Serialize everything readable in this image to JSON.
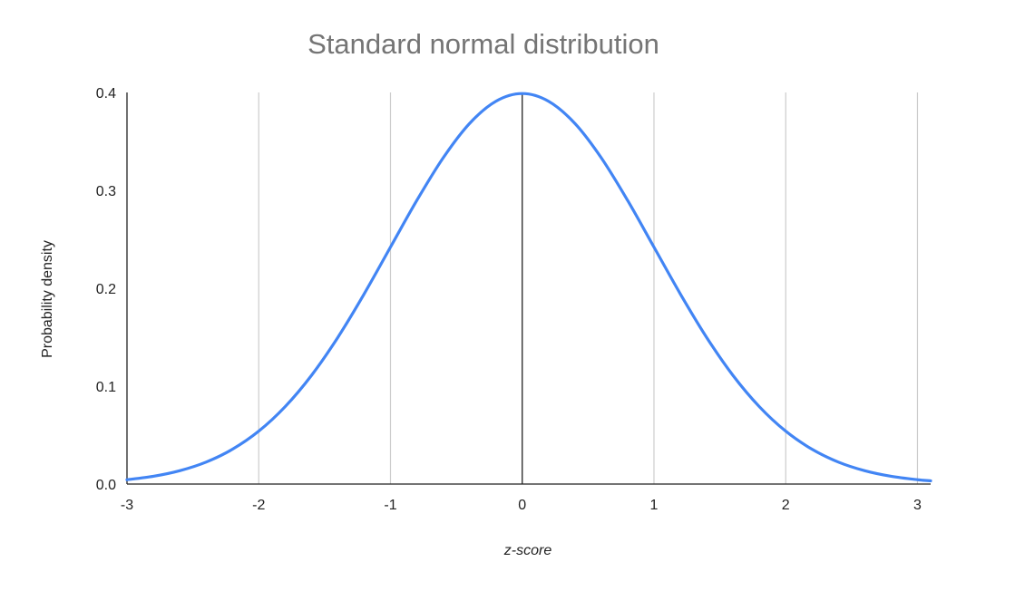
{
  "chart_data": {
    "type": "line",
    "title": "Standard normal distribution",
    "xlabel": "z-score",
    "ylabel": "Probability density",
    "xlim": [
      -3,
      3.1
    ],
    "ylim": [
      0,
      0.4
    ],
    "x_ticks": [
      "-3",
      "-2",
      "-1",
      "0",
      "1",
      "2",
      "3"
    ],
    "y_ticks": [
      "0.0",
      "0.1",
      "0.2",
      "0.3",
      "0.4"
    ],
    "grid": "vertical",
    "legend": "none",
    "series": [
      {
        "color": "#4285f4",
        "x": [
          -3.0,
          -2.8,
          -2.6,
          -2.4,
          -2.2,
          -2.0,
          -1.8,
          -1.6,
          -1.4,
          -1.2,
          -1.0,
          -0.8,
          -0.6,
          -0.4,
          -0.2,
          0.0,
          0.2,
          0.4,
          0.6,
          0.8,
          1.0,
          1.2,
          1.4,
          1.6,
          1.8,
          2.0,
          2.2,
          2.4,
          2.6,
          2.8,
          3.0,
          3.1
        ],
        "y": [
          0.0044,
          0.0079,
          0.0136,
          0.0224,
          0.0355,
          0.054,
          0.079,
          0.1109,
          0.1497,
          0.1942,
          0.242,
          0.2897,
          0.3332,
          0.3683,
          0.391,
          0.3989,
          0.391,
          0.3683,
          0.3332,
          0.2897,
          0.242,
          0.1942,
          0.1497,
          0.1109,
          0.079,
          0.054,
          0.0355,
          0.0224,
          0.0136,
          0.0079,
          0.0044,
          0.0033
        ]
      }
    ]
  }
}
